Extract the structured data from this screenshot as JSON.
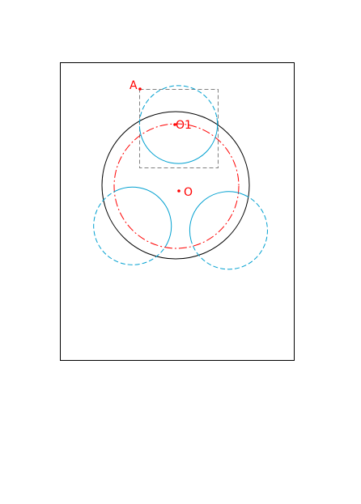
{
  "labels": {
    "point_a": "A",
    "point_o1": "O1",
    "point_o": "O"
  },
  "colors": {
    "frame": "#000000",
    "main_circle": "#000000",
    "construction": "#ff0000",
    "circles": "#00a0d0",
    "bounding_box": "#808080",
    "points": "#ff0000"
  }
}
